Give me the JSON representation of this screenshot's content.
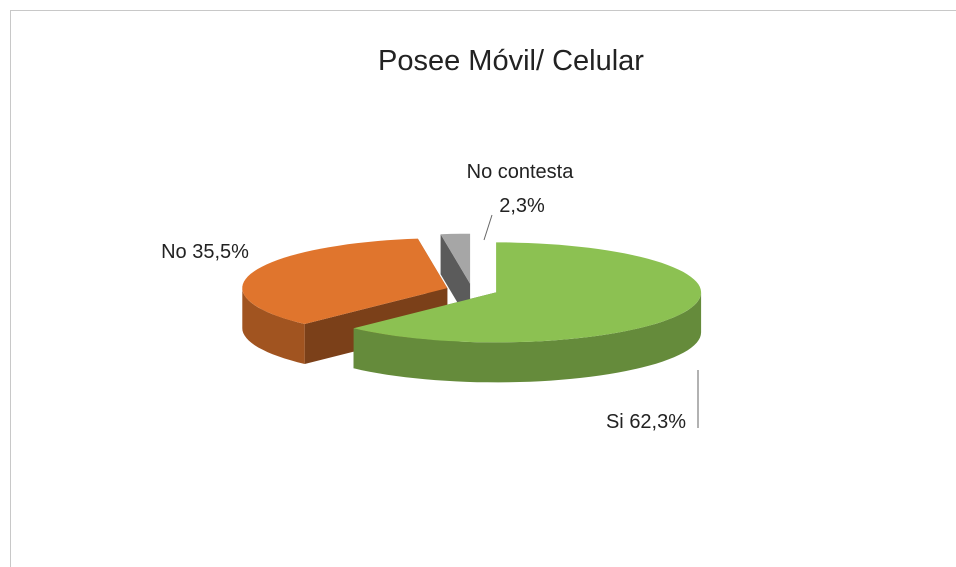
{
  "chart_data": {
    "type": "pie",
    "title": "Posee Móvil/ Celular",
    "categories": [
      "Si",
      "No",
      "No contesta"
    ],
    "values": [
      62.3,
      35.5,
      2.3
    ],
    "value_labels": [
      "62,3%",
      "35,5%",
      "2,3%"
    ],
    "colors": [
      "#8cc152",
      "#e0752d",
      "#a6a6a6"
    ]
  }
}
